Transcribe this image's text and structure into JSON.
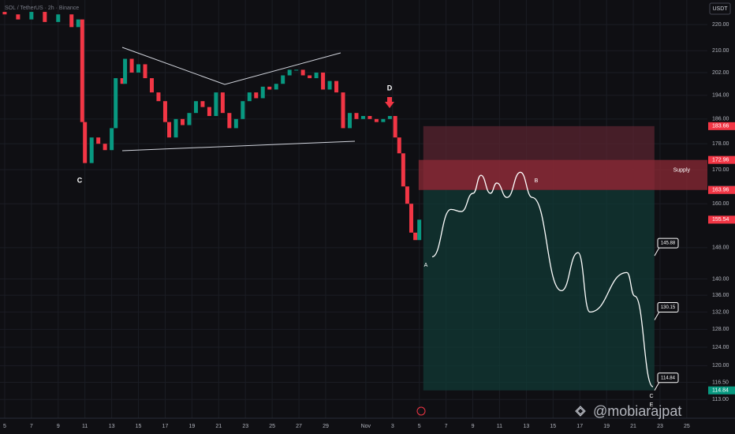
{
  "chart_data": {
    "type": "candlestick",
    "title": "SOL / TetherUS · 2h · Binance",
    "currency": "USDT",
    "log_scale": true,
    "grid": true,
    "ylim": [
      109.3,
      229.8
    ],
    "yticks": [
      {
        "value": 220,
        "label": "220.00"
      },
      {
        "value": 210,
        "label": "210.00"
      },
      {
        "value": 202,
        "label": "202.00"
      },
      {
        "value": 194,
        "label": "194.00"
      },
      {
        "value": 186,
        "label": "186.00"
      },
      {
        "value": 178,
        "label": "178.00"
      },
      {
        "value": 170,
        "label": "170.00"
      },
      {
        "value": 160,
        "label": "160.00"
      },
      {
        "value": 148,
        "label": "148.00"
      },
      {
        "value": 140,
        "label": "140.00"
      },
      {
        "value": 136,
        "label": "136.00"
      },
      {
        "value": 132,
        "label": "132.00"
      },
      {
        "value": 128,
        "label": "128.00"
      },
      {
        "value": 124,
        "label": "124.00"
      },
      {
        "value": 120,
        "label": "120.00"
      },
      {
        "value": 116.5,
        "label": "116.50"
      },
      {
        "value": 113,
        "label": "113.00"
      }
    ],
    "xlim": [
      -0.35,
      52.54
    ],
    "xticks": [
      {
        "value": 0,
        "label": "5"
      },
      {
        "value": 2,
        "label": "7"
      },
      {
        "value": 4,
        "label": "9"
      },
      {
        "value": 6,
        "label": "11"
      },
      {
        "value": 8,
        "label": "13"
      },
      {
        "value": 10,
        "label": "15"
      },
      {
        "value": 12,
        "label": "17"
      },
      {
        "value": 14,
        "label": "19"
      },
      {
        "value": 16,
        "label": "21"
      },
      {
        "value": 18,
        "label": "23"
      },
      {
        "value": 20,
        "label": "25"
      },
      {
        "value": 22,
        "label": "27"
      },
      {
        "value": 24,
        "label": "29"
      },
      {
        "value": 27,
        "label": "Nov"
      },
      {
        "value": 29,
        "label": "3"
      },
      {
        "value": 31,
        "label": "5"
      },
      {
        "value": 33,
        "label": "7"
      },
      {
        "value": 35,
        "label": "9"
      },
      {
        "value": 37,
        "label": "11"
      },
      {
        "value": 39,
        "label": "13"
      },
      {
        "value": 41,
        "label": "15"
      },
      {
        "value": 43,
        "label": "17"
      },
      {
        "value": 45,
        "label": "19"
      },
      {
        "value": 47,
        "label": "21"
      },
      {
        "value": 49,
        "label": "23"
      },
      {
        "value": 51,
        "label": "25"
      }
    ],
    "up_color": "#089981",
    "down_color": "#f23645",
    "x": [
      -0.3,
      0,
      1,
      2,
      3,
      4,
      5,
      5.5,
      5.8,
      6,
      6.5,
      7,
      7.5,
      8,
      8.3,
      8.8,
      9,
      9.5,
      10,
      10.5,
      11,
      11.5,
      12,
      12.3,
      12.8,
      13.3,
      13.8,
      14.3,
      14.8,
      15.3,
      15.8,
      16.3,
      16.8,
      17.3,
      17.8,
      18.3,
      18.8,
      19.3,
      19.8,
      20.3,
      20.8,
      21.3,
      21.8,
      22.3,
      22.8,
      23.3,
      23.8,
      24.3,
      24.8,
      25.3,
      25.8,
      26.3,
      26.8,
      27.3,
      27.8,
      28.3,
      28.8,
      29.2,
      29.5,
      29.8,
      30.1,
      30.4,
      30.7,
      31
    ],
    "values": [
      225,
      224,
      222,
      225,
      221,
      224,
      219,
      222,
      185,
      172,
      180,
      178,
      176,
      183,
      200,
      198,
      207,
      202,
      205,
      200,
      195,
      192,
      185,
      180,
      186,
      184,
      188,
      192,
      190,
      187,
      195,
      188,
      183,
      186,
      192,
      195,
      193,
      197,
      196,
      198,
      201,
      203,
      203,
      201,
      200,
      202,
      196,
      199,
      195,
      183,
      188,
      186,
      187,
      186,
      185,
      186,
      187,
      180,
      175,
      165,
      160,
      152,
      150,
      155.54
    ],
    "projection": {
      "x": [
        31.96,
        33.37,
        34.14,
        35.02,
        35.61,
        36.32,
        36.79,
        37.56,
        38.56,
        39.45,
        41.63,
        42.87,
        43.75,
        46.52,
        47.11,
        48.47
      ],
      "values": [
        145.6,
        158.4,
        157.8,
        163.0,
        168.3,
        163.0,
        166.0,
        161.8,
        169.2,
        161.8,
        137.1,
        146.7,
        132.0,
        141.6,
        135.8,
        115.6
      ],
      "color": "#ffffff"
    },
    "zones": [
      {
        "top": 183.66,
        "bottom": 163.96,
        "x": [
          31.3,
          48.58
        ],
        "color": "#5a2430"
      },
      {
        "label": "Supply",
        "top": 172.96,
        "bottom": 163.96,
        "x": [
          30.95,
          52.54
        ],
        "color": "#8c2a36"
      },
      {
        "top": 163.96,
        "bottom": 114.84,
        "x": [
          31.3,
          48.58
        ],
        "color": "#123a35"
      }
    ],
    "targets": [
      145.88,
      130.15,
      114.84
    ],
    "price_labels": [
      {
        "value": 183.66,
        "color": "#f23645"
      },
      {
        "value": 172.96,
        "color": "#f23645"
      },
      {
        "value": 164.01,
        "color": "#5d606b"
      },
      {
        "value": 163.96,
        "color": "#f23645"
      },
      {
        "value": 155.54,
        "color": "#f23645"
      },
      {
        "value": 114.84,
        "color": "#089981"
      }
    ],
    "annotations": [
      "C",
      "D",
      "A",
      "B",
      "C",
      "E"
    ],
    "watermark": "@mobiarajpat"
  }
}
